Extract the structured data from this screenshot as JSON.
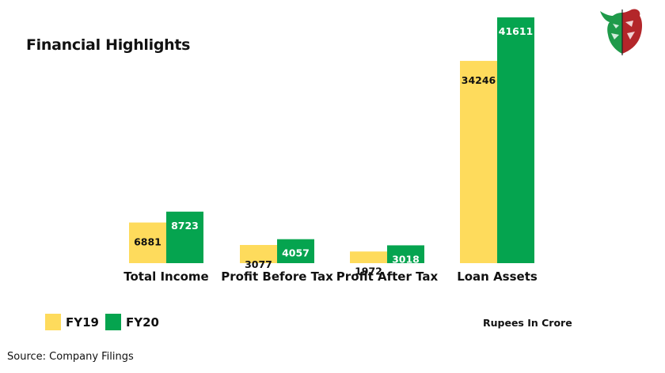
{
  "chart_data": {
    "type": "bar",
    "title": "Financial Highlights",
    "categories": [
      "Total Income",
      "Profit Before Tax",
      "Profit After Tax",
      "Loan Assets"
    ],
    "series": [
      {
        "name": "FY19",
        "color": "#fedb5c",
        "values": [
          6881,
          3077,
          1972,
          34246
        ]
      },
      {
        "name": "FY20",
        "color": "#05a44f",
        "values": [
          8723,
          4057,
          3018,
          41611
        ]
      }
    ],
    "xlabel": "",
    "ylabel": "",
    "ylim": [
      0,
      41611
    ],
    "grid": false,
    "data_labels": true,
    "legend": "bottom-left",
    "units_note": "Rupees In Crore",
    "source": "Source: Company Filings"
  },
  "logo": {
    "name": "bull-bear-logo",
    "colors": {
      "bull": "#1f9a4a",
      "bear": "#b3262a"
    }
  }
}
